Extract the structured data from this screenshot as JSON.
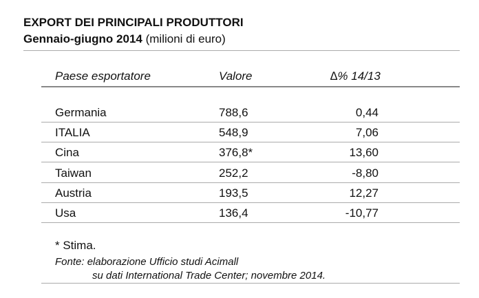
{
  "header": {
    "title": "EXPORT DEI PRINCIPALI PRODUTTORI",
    "subtitle_bold": "Gennaio-giugno 2014",
    "subtitle_note": "(milioni di euro)"
  },
  "table": {
    "columns": [
      "Paese esportatore",
      "Valore",
      "∆% 14/13"
    ],
    "rows": [
      [
        "Germania",
        "788,6",
        "0,44"
      ],
      [
        "ITALIA",
        "548,9",
        "7,06"
      ],
      [
        "Cina",
        "376,8*",
        "13,60"
      ],
      [
        "Taiwan",
        "252,2",
        "-8,80"
      ],
      [
        "Austria",
        "193,5",
        "12,27"
      ],
      [
        "Usa",
        "136,4",
        "-10,77"
      ]
    ]
  },
  "notes": {
    "estimate": "* Stima.",
    "source_line1": "Fonte: elaborazione Ufficio studi Acimall",
    "source_line2": "su dati International Trade Center; novembre 2014."
  }
}
